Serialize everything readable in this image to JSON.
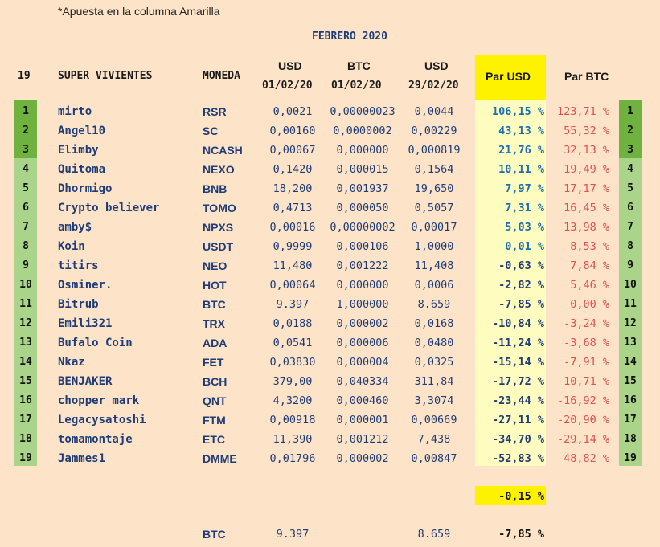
{
  "note": "*Apuesta en la columna Amarilla",
  "month_title": "FEBRERO 2020",
  "headers": {
    "count": "19",
    "name": "SUPER VIVIENTES",
    "coin": "MONEDA",
    "usd1_line1": "USD",
    "usd1_line2": "01/02/20",
    "btc1_line1": "BTC",
    "btc1_line2": "01/02/20",
    "usd2_line1": "USD",
    "usd2_line2": "29/02/20",
    "par_usd": "Par USD",
    "par_btc": "Par BTC"
  },
  "colors": {
    "background": "#fde4c8",
    "rank_dark": "#6fb23f",
    "rank_light": "#a9d48a",
    "yellow": "#fff200",
    "yellow_light": "#fffcc0",
    "positive": "#1a6fb0",
    "negative": "#1f3c78",
    "btc_pct": "#e05050"
  },
  "rows": [
    {
      "rank": "1",
      "name": "mirto",
      "coin": "RSR",
      "usd_start": "0,0021",
      "btc_start": "0,00000023",
      "usd_end": "0,0044",
      "par_usd": "106,15 %",
      "par_btc": "123,71 %"
    },
    {
      "rank": "2",
      "name": "Angel10",
      "coin": "SC",
      "usd_start": "0,00160",
      "btc_start": "0,0000002",
      "usd_end": "0,00229",
      "par_usd": "43,13 %",
      "par_btc": "55,32 %"
    },
    {
      "rank": "3",
      "name": "Elimby",
      "coin": "NCASH",
      "usd_start": "0,00067",
      "btc_start": "0,000000",
      "usd_end": "0,000819",
      "par_usd": "21,76 %",
      "par_btc": "32,13 %"
    },
    {
      "rank": "4",
      "name": "Quitoma",
      "coin": "NEXO",
      "usd_start": "0,1420",
      "btc_start": "0,000015",
      "usd_end": "0,1564",
      "par_usd": "10,11 %",
      "par_btc": "19,49 %"
    },
    {
      "rank": "5",
      "name": "Dhormigo",
      "coin": "BNB",
      "usd_start": "18,200",
      "btc_start": "0,001937",
      "usd_end": "19,650",
      "par_usd": "7,97 %",
      "par_btc": "17,17 %"
    },
    {
      "rank": "6",
      "name": "Crypto believer",
      "coin": "TOMO",
      "usd_start": "0,4713",
      "btc_start": "0,000050",
      "usd_end": "0,5057",
      "par_usd": "7,31 %",
      "par_btc": "16,45 %"
    },
    {
      "rank": "7",
      "name": "amby$",
      "coin": "NPXS",
      "usd_start": "0,00016",
      "btc_start": "0,00000002",
      "usd_end": "0,00017",
      "par_usd": "5,03 %",
      "par_btc": "13,98 %"
    },
    {
      "rank": "8",
      "name": "Koin",
      "coin": "USDT",
      "usd_start": "0,9999",
      "btc_start": "0,000106",
      "usd_end": "1,0000",
      "par_usd": "0,01 %",
      "par_btc": "8,53 %"
    },
    {
      "rank": "9",
      "name": "titirs",
      "coin": "NEO",
      "usd_start": "11,480",
      "btc_start": "0,001222",
      "usd_end": "11,408",
      "par_usd": "-0,63 %",
      "par_btc": "7,84 %"
    },
    {
      "rank": "10",
      "name": "Osminer.",
      "coin": "HOT",
      "usd_start": "0,00064",
      "btc_start": "0,000000",
      "usd_end": "0,0006",
      "par_usd": "-2,82 %",
      "par_btc": "5,46 %"
    },
    {
      "rank": "11",
      "name": "Bitrub",
      "coin": "BTC",
      "usd_start": "9.397",
      "btc_start": "1,000000",
      "usd_end": "8.659",
      "par_usd": "-7,85 %",
      "par_btc": "0,00 %"
    },
    {
      "rank": "12",
      "name": "Emili321",
      "coin": "TRX",
      "usd_start": "0,0188",
      "btc_start": "0,000002",
      "usd_end": "0,0168",
      "par_usd": "-10,84 %",
      "par_btc": "-3,24 %"
    },
    {
      "rank": "13",
      "name": "Bufalo Coin",
      "coin": "ADA",
      "usd_start": "0,0541",
      "btc_start": "0,000006",
      "usd_end": "0,0480",
      "par_usd": "-11,24 %",
      "par_btc": "-3,68 %"
    },
    {
      "rank": "14",
      "name": "Nkaz",
      "coin": "FET",
      "usd_start": "0,03830",
      "btc_start": "0,000004",
      "usd_end": "0,0325",
      "par_usd": "-15,14 %",
      "par_btc": "-7,91 %"
    },
    {
      "rank": "15",
      "name": "BENJAKER",
      "coin": "BCH",
      "usd_start": "379,00",
      "btc_start": "0,040334",
      "usd_end": "311,84",
      "par_usd": "-17,72 %",
      "par_btc": "-10,71 %"
    },
    {
      "rank": "16",
      "name": "chopper mark",
      "coin": "QNT",
      "usd_start": "4,3200",
      "btc_start": "0,000460",
      "usd_end": "3,3074",
      "par_usd": "-23,44 %",
      "par_btc": "-16,92 %"
    },
    {
      "rank": "17",
      "name": "Legacysatoshi",
      "coin": "FTM",
      "usd_start": "0,00918",
      "btc_start": "0,000001",
      "usd_end": "0,00669",
      "par_usd": "-27,11 %",
      "par_btc": "-20,90 %"
    },
    {
      "rank": "18",
      "name": "tomamontaje",
      "coin": "ETC",
      "usd_start": "11,390",
      "btc_start": "0,001212",
      "usd_end": "7,438",
      "par_usd": "-34,70 %",
      "par_btc": "-29,14 %"
    },
    {
      "rank": "19",
      "name": "Jammes1",
      "coin": "DMME",
      "usd_start": "0,01796",
      "btc_start": "0,000002",
      "usd_end": "0,00847",
      "par_usd": "-52,83 %",
      "par_btc": "-48,82 %"
    }
  ],
  "average_par_usd": "-0,15 %",
  "btc_summary": {
    "coin": "BTC",
    "usd_start": "9.397",
    "usd_end": "8.659",
    "par_usd": "-7,85 %"
  }
}
